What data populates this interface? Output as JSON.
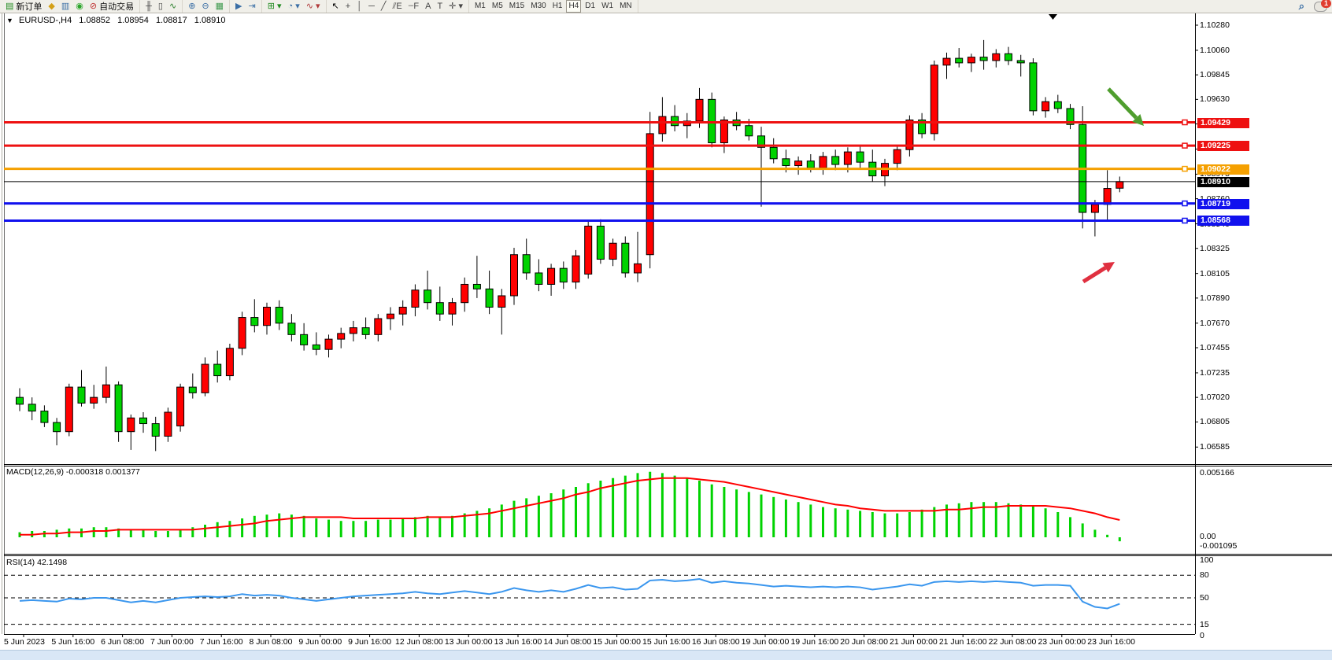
{
  "toolbar": {
    "groups": [
      {
        "name": "orders",
        "items": [
          {
            "name": "new-order-button",
            "glyph": "▤",
            "color": "#1f8a1f",
            "label": "新订单"
          },
          {
            "name": "styles-bucket-icon",
            "glyph": "◆",
            "color": "#d4a017",
            "label": ""
          },
          {
            "name": "chart-window-icon",
            "glyph": "▥",
            "color": "#3a6ea5",
            "label": ""
          },
          {
            "name": "signals-icon",
            "glyph": "◉",
            "color": "#2aa52a",
            "label": ""
          },
          {
            "name": "auto-trading-button",
            "glyph": "⊘",
            "color": "#c03030",
            "label": "自动交易"
          }
        ]
      },
      {
        "name": "chart-types",
        "items": [
          {
            "name": "bar-chart-button",
            "glyph": "╫",
            "color": "#444",
            "label": ""
          },
          {
            "name": "candlestick-chart-button",
            "glyph": "▯",
            "color": "#444",
            "label": ""
          },
          {
            "name": "line-chart-button",
            "glyph": "∿",
            "color": "#2a7f2a",
            "label": ""
          }
        ]
      },
      {
        "name": "zoom",
        "items": [
          {
            "name": "zoom-in-button",
            "glyph": "⊕",
            "color": "#3a6ea5",
            "label": ""
          },
          {
            "name": "zoom-out-button",
            "glyph": "⊖",
            "color": "#3a6ea5",
            "label": ""
          },
          {
            "name": "tile-windows-button",
            "glyph": "▦",
            "color": "#3f9a4f",
            "label": ""
          }
        ]
      },
      {
        "name": "scroll",
        "items": [
          {
            "name": "auto-scroll-button",
            "glyph": "▶",
            "color": "#3a6ea5",
            "label": ""
          },
          {
            "name": "chart-shift-button",
            "glyph": "⇥",
            "color": "#3a6ea5",
            "label": ""
          }
        ]
      },
      {
        "name": "new-objects",
        "items": [
          {
            "name": "new-chart-dropdown",
            "glyph": "⊞ ▾",
            "color": "#1f8a1f",
            "label": ""
          },
          {
            "name": "periods-clock-dropdown",
            "glyph": "◔ ▾",
            "color": "#3a6ea5",
            "label": ""
          },
          {
            "name": "indicators-dropdown",
            "glyph": "∿ ▾",
            "color": "#b03a3a",
            "label": ""
          }
        ]
      },
      {
        "name": "drawing-tools",
        "items": [
          {
            "name": "cursor-tool",
            "glyph": "↖",
            "color": "#000",
            "label": ""
          },
          {
            "name": "crosshair-tool",
            "glyph": "+",
            "color": "#444",
            "label": ""
          },
          {
            "name": "vertical-line-tool",
            "glyph": "│",
            "color": "#444",
            "label": ""
          },
          {
            "name": "horizontal-line-tool",
            "glyph": "─",
            "color": "#444",
            "label": ""
          },
          {
            "name": "trendline-tool",
            "glyph": "╱",
            "color": "#444",
            "label": ""
          },
          {
            "name": "equidistant-channel-tool",
            "glyph": "⫽E",
            "color": "#444",
            "label": ""
          },
          {
            "name": "fibonacci-tool",
            "glyph": "┄F",
            "color": "#444",
            "label": ""
          },
          {
            "name": "text-tool",
            "glyph": "A",
            "color": "#444",
            "label": ""
          },
          {
            "name": "text-label-tool",
            "glyph": "T",
            "color": "#444",
            "label": ""
          },
          {
            "name": "arrows-tool",
            "glyph": "✛ ▾",
            "color": "#444",
            "label": ""
          }
        ]
      }
    ],
    "timeframes": [
      "M1",
      "M5",
      "M15",
      "M30",
      "H1",
      "H4",
      "D1",
      "W1",
      "MN"
    ],
    "active_timeframe": "H4",
    "search_glyph": "⌕",
    "notification_count": "1"
  },
  "chart": {
    "oneclick_arrow": "▼",
    "symbol_period": "EURUSD-,H4",
    "open": "1.08852",
    "high": "1.08954",
    "low": "1.08817",
    "close": "1.08910",
    "price_ticks": [
      "1.10280",
      "1.10060",
      "1.09845",
      "1.09630",
      "1.09415",
      "1.09195",
      "1.08975",
      "1.08760",
      "1.08540",
      "1.08325",
      "1.08105",
      "1.07890",
      "1.07670",
      "1.07455",
      "1.07235",
      "1.07020",
      "1.06805",
      "1.06585"
    ],
    "levels": [
      {
        "name": "resistance-1",
        "price": 1.09429,
        "label": "1.09429",
        "color": "#ee1111",
        "width": 3
      },
      {
        "name": "resistance-2",
        "price": 1.09225,
        "label": "1.09225",
        "color": "#ee1111",
        "width": 3
      },
      {
        "name": "pivot-orange",
        "price": 1.09022,
        "label": "1.09022",
        "color": "#f5a000",
        "width": 3
      },
      {
        "name": "current-price",
        "price": 1.0891,
        "label": "1.08910",
        "color": "#000000",
        "width": 1
      },
      {
        "name": "support-1",
        "price": 1.08719,
        "label": "1.08719",
        "color": "#1111ee",
        "width": 3
      },
      {
        "name": "support-2",
        "price": 1.08568,
        "label": "1.08568",
        "color": "#1111ee",
        "width": 3
      }
    ]
  },
  "macd_panel": {
    "label": "MACD(12,26,9)",
    "values_text": "-0.000318 0.001377",
    "axis_top": "0.005166",
    "axis_zero": "0.00",
    "axis_bottom": "-0.001095"
  },
  "rsi_panel": {
    "label": "RSI(14)",
    "value_text": "42.1498",
    "axis": [
      "100",
      "80",
      "50",
      "15",
      "0"
    ],
    "dashed_levels": [
      80,
      50,
      15
    ]
  },
  "time_axis": [
    "5 Jun 2023",
    "5 Jun 16:00",
    "6 Jun 08:00",
    "7 Jun 00:00",
    "7 Jun 16:00",
    "8 Jun 08:00",
    "9 Jun 00:00",
    "9 Jun 16:00",
    "12 Jun 08:00",
    "13 Jun 00:00",
    "13 Jun 16:00",
    "14 Jun 08:00",
    "15 Jun 00:00",
    "15 Jun 16:00",
    "16 Jun 08:00",
    "19 Jun 00:00",
    "19 Jun 16:00",
    "20 Jun 08:00",
    "21 Jun 00:00",
    "21 Jun 16:00",
    "22 Jun 08:00",
    "23 Jun 00:00",
    "23 Jun 16:00"
  ],
  "chart_data": {
    "type": "candlestick",
    "symbol": "EURUSD",
    "period": "H4",
    "bull_color": "#ff0000",
    "bear_color": "#00d300",
    "note": "Chinese color convention: red = up, green = down",
    "ylim": [
      1.06585,
      1.1028
    ],
    "candles": [
      [
        1.0702,
        1.071,
        1.069,
        1.0696
      ],
      [
        1.0696,
        1.0702,
        1.0682,
        1.069
      ],
      [
        1.069,
        1.0695,
        1.0676,
        1.068
      ],
      [
        1.068,
        1.0684,
        1.066,
        1.0672
      ],
      [
        1.0672,
        1.0714,
        1.0668,
        1.0711
      ],
      [
        1.0711,
        1.0726,
        1.0694,
        1.0697
      ],
      [
        1.0697,
        1.0713,
        1.0692,
        1.0702
      ],
      [
        1.0702,
        1.0729,
        1.0697,
        1.0713
      ],
      [
        1.0713,
        1.0716,
        1.0663,
        1.0672
      ],
      [
        1.0672,
        1.0687,
        1.0656,
        1.0684
      ],
      [
        1.0684,
        1.0689,
        1.0671,
        1.0679
      ],
      [
        1.0679,
        1.0685,
        1.0655,
        1.0668
      ],
      [
        1.0668,
        1.0693,
        1.0663,
        1.0689
      ],
      [
        1.0677,
        1.0714,
        1.0672,
        1.0711
      ],
      [
        1.0711,
        1.0723,
        1.0701,
        1.0706
      ],
      [
        1.0706,
        1.0737,
        1.0703,
        1.0731
      ],
      [
        1.0731,
        1.0743,
        1.0715,
        1.0721
      ],
      [
        1.0721,
        1.0749,
        1.0717,
        1.0745
      ],
      [
        1.0745,
        1.0777,
        1.0739,
        1.0772
      ],
      [
        1.0772,
        1.0788,
        1.0759,
        1.0765
      ],
      [
        1.0765,
        1.0785,
        1.0757,
        1.0781
      ],
      [
        1.0781,
        1.0787,
        1.0761,
        1.0767
      ],
      [
        1.0767,
        1.0775,
        1.0751,
        1.0757
      ],
      [
        1.0757,
        1.0767,
        1.0743,
        1.0748
      ],
      [
        1.0748,
        1.0759,
        1.0739,
        1.0744
      ],
      [
        1.0744,
        1.0757,
        1.0737,
        1.0753
      ],
      [
        1.0753,
        1.0763,
        1.0745,
        1.0758
      ],
      [
        1.0758,
        1.0769,
        1.0751,
        1.0763
      ],
      [
        1.0763,
        1.0772,
        1.0753,
        1.0757
      ],
      [
        1.0757,
        1.0775,
        1.0751,
        1.0771
      ],
      [
        1.0771,
        1.0781,
        1.0761,
        1.0775
      ],
      [
        1.0775,
        1.0787,
        1.0765,
        1.0781
      ],
      [
        1.0781,
        1.0801,
        1.0773,
        1.0796
      ],
      [
        1.0796,
        1.0813,
        1.0779,
        1.0785
      ],
      [
        1.0785,
        1.0799,
        1.0769,
        1.0775
      ],
      [
        1.0775,
        1.0789,
        1.0765,
        1.0785
      ],
      [
        1.0785,
        1.0807,
        1.0777,
        1.0801
      ],
      [
        1.0801,
        1.0826,
        1.0789,
        1.0797
      ],
      [
        1.0797,
        1.0813,
        1.0775,
        1.0781
      ],
      [
        1.0781,
        1.0797,
        1.0757,
        1.0791
      ],
      [
        1.0791,
        1.0833,
        1.0783,
        1.0827
      ],
      [
        1.0827,
        1.0841,
        1.0805,
        1.0811
      ],
      [
        1.0811,
        1.0823,
        1.0795,
        1.0801
      ],
      [
        1.0801,
        1.0819,
        1.0791,
        1.0815
      ],
      [
        1.0815,
        1.0821,
        1.0797,
        1.0803
      ],
      [
        1.0803,
        1.0831,
        1.0797,
        1.0826
      ],
      [
        1.081,
        1.0856,
        1.0806,
        1.0852
      ],
      [
        1.0852,
        1.0858,
        1.0819,
        1.0823
      ],
      [
        1.0823,
        1.0841,
        1.0817,
        1.0837
      ],
      [
        1.0837,
        1.0843,
        1.0807,
        1.0811
      ],
      [
        1.0811,
        1.0847,
        1.0803,
        1.0819
      ],
      [
        1.0827,
        1.0952,
        1.0815,
        1.0933
      ],
      [
        1.0933,
        1.0965,
        1.0926,
        1.0948
      ],
      [
        1.0948,
        1.0958,
        1.0935,
        1.094
      ],
      [
        1.094,
        1.0951,
        1.0929,
        1.0944
      ],
      [
        1.0944,
        1.0973,
        1.0938,
        1.0963
      ],
      [
        1.0963,
        1.0969,
        1.0921,
        1.0925
      ],
      [
        1.0925,
        1.0948,
        1.0916,
        1.0945
      ],
      [
        1.0945,
        1.0952,
        1.0936,
        1.094
      ],
      [
        1.094,
        1.0946,
        1.0927,
        1.0931
      ],
      [
        1.0931,
        1.0939,
        1.0869,
        1.0921
      ],
      [
        1.0921,
        1.0929,
        1.0907,
        1.0911
      ],
      [
        1.0911,
        1.0919,
        1.0899,
        1.0905
      ],
      [
        1.0905,
        1.0913,
        1.0897,
        1.0909
      ],
      [
        1.0909,
        1.0915,
        1.0899,
        1.0903
      ],
      [
        1.0903,
        1.0917,
        1.0897,
        1.0913
      ],
      [
        1.0913,
        1.0919,
        1.0901,
        1.0906
      ],
      [
        1.0906,
        1.0921,
        1.0899,
        1.0917
      ],
      [
        1.0917,
        1.0923,
        1.0903,
        1.0908
      ],
      [
        1.0908,
        1.0919,
        1.0891,
        1.0896
      ],
      [
        1.0896,
        1.0911,
        1.0887,
        1.0907
      ],
      [
        1.0907,
        1.0923,
        1.0901,
        1.0919
      ],
      [
        1.0919,
        1.0949,
        1.0913,
        1.0945
      ],
      [
        1.0945,
        1.0951,
        1.0929,
        1.0933
      ],
      [
        1.0933,
        1.0997,
        1.0927,
        1.0993
      ],
      [
        1.0993,
        1.1004,
        1.0981,
        1.0999
      ],
      [
        1.0999,
        1.1008,
        1.0991,
        1.0995
      ],
      [
        1.0995,
        1.1003,
        1.0987,
        1.1
      ],
      [
        1.1,
        1.1015,
        1.0989,
        1.0997
      ],
      [
        1.0997,
        1.1007,
        1.0991,
        1.1003
      ],
      [
        1.1003,
        1.1009,
        1.0993,
        1.0997
      ],
      [
        1.0997,
        1.1002,
        1.0983,
        1.0995
      ],
      [
        1.0995,
        1.0999,
        1.0949,
        1.0953
      ],
      [
        1.0953,
        1.0965,
        1.0947,
        1.0961
      ],
      [
        1.0961,
        1.0967,
        1.0951,
        1.0955
      ],
      [
        1.0955,
        1.0959,
        1.0937,
        1.0941
      ],
      [
        1.0941,
        1.0957,
        1.085,
        1.0864
      ],
      [
        1.0864,
        1.0875,
        1.0843,
        1.0871
      ],
      [
        1.0871,
        1.0901,
        1.0856,
        1.0885
      ],
      [
        1.08852,
        1.08954,
        1.08817,
        1.0891
      ]
    ],
    "macd": {
      "params": "12,26,9",
      "current_main": -0.000318,
      "current_signal": 0.001377,
      "histogram": [
        0.0004,
        0.0005,
        0.0005,
        0.0006,
        0.0007,
        0.0007,
        0.0008,
        0.0008,
        0.0007,
        0.0006,
        0.0006,
        0.0005,
        0.0005,
        0.0006,
        0.0008,
        0.001,
        0.0012,
        0.0013,
        0.0015,
        0.0017,
        0.0018,
        0.0019,
        0.0018,
        0.0017,
        0.0015,
        0.0014,
        0.0013,
        0.0013,
        0.0013,
        0.0014,
        0.0014,
        0.0015,
        0.0016,
        0.0017,
        0.0016,
        0.0017,
        0.0019,
        0.0021,
        0.0023,
        0.0026,
        0.0029,
        0.0031,
        0.0033,
        0.0035,
        0.0038,
        0.004,
        0.0043,
        0.0045,
        0.0047,
        0.0049,
        0.0051,
        0.0052,
        0.0051,
        0.0049,
        0.0047,
        0.0045,
        0.0042,
        0.004,
        0.0038,
        0.0036,
        0.0034,
        0.0032,
        0.003,
        0.0028,
        0.0026,
        0.0024,
        0.0023,
        0.0022,
        0.0021,
        0.002,
        0.0019,
        0.0019,
        0.002,
        0.0022,
        0.0024,
        0.0026,
        0.0027,
        0.0028,
        0.0028,
        0.0028,
        0.0027,
        0.0026,
        0.0025,
        0.0023,
        0.002,
        0.0016,
        0.0011,
        0.0006,
        0.0002,
        -0.000318
      ],
      "signal": [
        0.0002,
        0.0002,
        0.0003,
        0.0003,
        0.0004,
        0.0004,
        0.0005,
        0.0005,
        0.0006,
        0.0006,
        0.0006,
        0.0006,
        0.0006,
        0.0006,
        0.0006,
        0.0007,
        0.0008,
        0.0009,
        0.001,
        0.0011,
        0.0013,
        0.0014,
        0.0015,
        0.0016,
        0.0016,
        0.0016,
        0.0016,
        0.0015,
        0.0015,
        0.0015,
        0.0015,
        0.0015,
        0.0015,
        0.0016,
        0.0016,
        0.0016,
        0.0017,
        0.0018,
        0.0019,
        0.0021,
        0.0023,
        0.0025,
        0.0027,
        0.0029,
        0.0031,
        0.0034,
        0.0036,
        0.0039,
        0.0041,
        0.0043,
        0.0045,
        0.0046,
        0.0047,
        0.0047,
        0.0047,
        0.0046,
        0.0045,
        0.0044,
        0.0042,
        0.004,
        0.0038,
        0.0036,
        0.0034,
        0.0032,
        0.003,
        0.0028,
        0.0026,
        0.0025,
        0.0023,
        0.0022,
        0.0021,
        0.0021,
        0.0021,
        0.0021,
        0.0021,
        0.0022,
        0.0022,
        0.0023,
        0.0024,
        0.0024,
        0.0025,
        0.0025,
        0.0025,
        0.0025,
        0.0024,
        0.0023,
        0.0021,
        0.0019,
        0.0016,
        0.001377
      ]
    },
    "rsi": {
      "params": "14",
      "current": 42.1498,
      "values": [
        46,
        47,
        46,
        45,
        49,
        48,
        50,
        50,
        47,
        44,
        46,
        44,
        47,
        50,
        51,
        52,
        51,
        52,
        55,
        53,
        54,
        53,
        50,
        48,
        46,
        48,
        50,
        52,
        53,
        54,
        55,
        56,
        58,
        56,
        55,
        57,
        59,
        57,
        55,
        58,
        63,
        60,
        58,
        60,
        58,
        62,
        67,
        63,
        64,
        61,
        62,
        73,
        74,
        72,
        73,
        75,
        70,
        72,
        70,
        69,
        67,
        65,
        66,
        65,
        64,
        65,
        64,
        65,
        64,
        61,
        63,
        65,
        68,
        66,
        71,
        72,
        71,
        72,
        71,
        72,
        71,
        70,
        66,
        67,
        67,
        66,
        45,
        38,
        36,
        42.1498
      ]
    },
    "annotations": [
      {
        "name": "green-down-arrow",
        "type": "arrow",
        "color": "#4f9e2e",
        "from": [
          1408,
          97
        ],
        "to": [
          1453,
          144
        ]
      },
      {
        "name": "red-up-arrow",
        "type": "arrow",
        "color": "#e03040",
        "from": [
          1376,
          342
        ],
        "to": [
          1416,
          317
        ]
      }
    ]
  }
}
